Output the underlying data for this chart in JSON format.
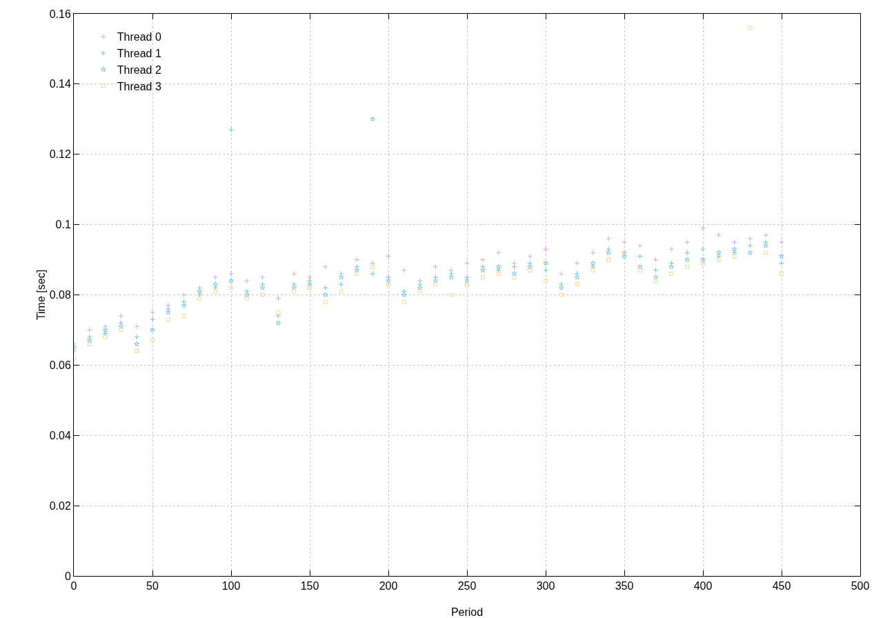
{
  "chart_data": {
    "type": "scatter",
    "xlabel": "Period",
    "ylabel": "Time [sec]",
    "x": [
      0,
      10,
      20,
      30,
      40,
      50,
      60,
      70,
      80,
      90,
      100,
      110,
      120,
      130,
      140,
      150,
      160,
      170,
      180,
      190,
      200,
      210,
      220,
      230,
      240,
      250,
      260,
      270,
      280,
      290,
      300,
      310,
      320,
      330,
      340,
      350,
      360,
      370,
      380,
      390,
      400,
      410,
      420,
      430,
      440,
      450
    ],
    "series": [
      {
        "name": "Thread 0",
        "color": "#d4a6e0",
        "marker": "cross",
        "values": [
          0.066,
          0.07,
          0.071,
          0.074,
          0.071,
          0.075,
          0.077,
          0.08,
          0.082,
          0.085,
          0.086,
          0.084,
          0.085,
          0.079,
          0.086,
          0.085,
          0.088,
          0.086,
          0.09,
          0.089,
          0.091,
          0.087,
          0.084,
          0.088,
          0.087,
          0.089,
          0.09,
          0.092,
          0.089,
          0.091,
          0.093,
          0.086,
          0.089,
          0.092,
          0.096,
          0.095,
          0.094,
          0.09,
          0.093,
          0.095,
          0.099,
          0.097,
          0.095,
          0.096,
          0.097,
          0.095
        ]
      },
      {
        "name": "Thread 1",
        "color": "#6cc9b4",
        "marker": "cross",
        "values": [
          0.064,
          0.068,
          0.069,
          0.072,
          0.068,
          0.073,
          0.076,
          0.078,
          0.08,
          0.082,
          0.127,
          0.081,
          0.083,
          0.074,
          0.083,
          0.084,
          0.082,
          0.083,
          0.088,
          0.086,
          0.085,
          0.081,
          0.083,
          0.085,
          0.086,
          0.085,
          0.088,
          0.087,
          0.088,
          0.089,
          0.087,
          0.083,
          0.086,
          0.088,
          0.093,
          0.092,
          0.091,
          0.087,
          0.089,
          0.092,
          0.093,
          0.091,
          0.092,
          0.094,
          0.095,
          0.089
        ]
      },
      {
        "name": "Thread 2",
        "color": "#6ec3ec",
        "marker": "star",
        "values": [
          0.065,
          0.067,
          0.07,
          0.071,
          0.066,
          0.07,
          0.075,
          0.077,
          0.081,
          0.083,
          0.084,
          0.08,
          0.082,
          0.072,
          0.082,
          0.083,
          0.08,
          0.085,
          0.087,
          0.13,
          0.084,
          0.08,
          0.082,
          0.084,
          0.085,
          0.084,
          0.087,
          0.088,
          0.086,
          0.088,
          0.089,
          0.082,
          0.085,
          0.089,
          0.092,
          0.091,
          0.088,
          0.085,
          0.088,
          0.09,
          0.09,
          0.092,
          0.093,
          0.092,
          0.094,
          0.091
        ]
      },
      {
        "name": "Thread 3",
        "color": "#f3d594",
        "marker": "square",
        "values": [
          0.062,
          0.066,
          0.068,
          0.07,
          0.064,
          0.067,
          0.073,
          0.074,
          0.079,
          0.081,
          0.082,
          0.079,
          0.08,
          0.075,
          0.081,
          0.082,
          0.078,
          0.081,
          0.086,
          0.088,
          0.083,
          0.078,
          0.081,
          0.083,
          0.08,
          0.083,
          0.085,
          0.086,
          0.085,
          0.087,
          0.084,
          0.08,
          0.083,
          0.087,
          0.09,
          0.092,
          0.087,
          0.084,
          0.086,
          0.088,
          0.089,
          0.09,
          0.091,
          0.156,
          0.092,
          0.086
        ]
      }
    ],
    "xlim": [
      0,
      500
    ],
    "xticks": [
      0,
      50,
      100,
      150,
      200,
      250,
      300,
      350,
      400,
      450,
      500
    ],
    "ylim": [
      0,
      0.16
    ],
    "yticks": [
      0,
      0.02,
      0.04,
      0.06,
      0.08,
      0.1,
      0.12,
      0.14,
      0.16
    ],
    "grid": true,
    "legend": "top left"
  }
}
